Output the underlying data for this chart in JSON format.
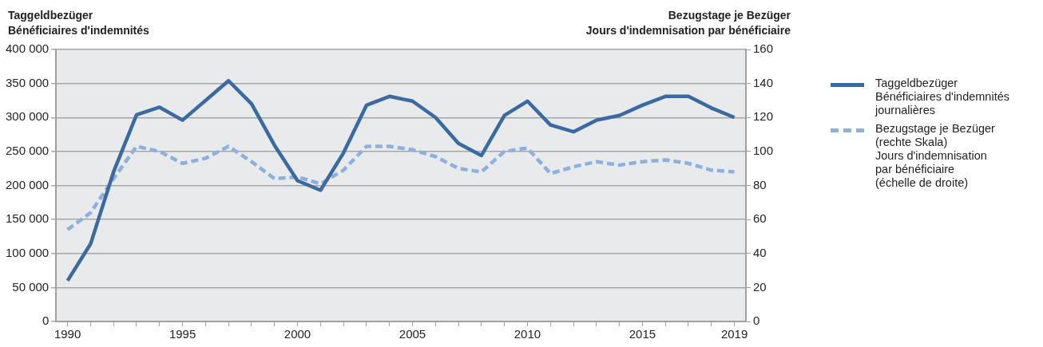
{
  "chart_data": {
    "type": "line",
    "ylabel": "Taggeldbezüger\nBénéficiaires d'indemnités",
    "y2label": "Bezugstage je Bezüger\nJours d'indemnisation par bénéficiaire",
    "x": [
      1990,
      1991,
      1992,
      1993,
      1994,
      1995,
      1996,
      1997,
      1998,
      1999,
      2000,
      2001,
      2002,
      2003,
      2004,
      2005,
      2006,
      2007,
      2008,
      2009,
      2010,
      2011,
      2012,
      2013,
      2014,
      2015,
      2016,
      2017,
      2018,
      2019
    ],
    "series": [
      {
        "name": "Taggeldbezüger\nBénéficiaires d'indemnités\njournalières",
        "color": "#3b6aa3",
        "line_style": "solid",
        "values": [
          60000,
          114000,
          220000,
          304000,
          315000,
          296000,
          325000,
          354000,
          320000,
          259000,
          207000,
          193000,
          248000,
          318000,
          331000,
          324000,
          300000,
          262000,
          244000,
          303000,
          324000,
          289000,
          279000,
          296000,
          303000,
          318000,
          331000,
          331000,
          314000,
          300000
        ]
      },
      {
        "name": "Bezugstage je Bezüger\n(rechte Skala)\nJours d'indemnisation\npar bénéficiaire\n(échelle de droite)",
        "color": "#8eb0de",
        "line_style": "dashed",
        "axis": "y2",
        "values": [
          54,
          64,
          84,
          103,
          100,
          93,
          96,
          103,
          94,
          84,
          85,
          81,
          89,
          103,
          103,
          101,
          97,
          90,
          88,
          100,
          102,
          87,
          91,
          94,
          92,
          94,
          95,
          93,
          89,
          88
        ]
      }
    ],
    "xlim": [
      1989.5,
      2019.5
    ],
    "xticks": [
      1990,
      {
        "value": 1991,
        "label": null
      },
      {
        "value": 1992,
        "label": null
      },
      {
        "value": 1993,
        "label": null
      },
      {
        "value": 1994,
        "label": null
      },
      1995,
      {
        "value": 1996,
        "label": null
      },
      {
        "value": 1997,
        "label": null
      },
      {
        "value": 1998,
        "label": null
      },
      {
        "value": 1999,
        "label": null
      },
      2000,
      {
        "value": 2001,
        "label": null
      },
      {
        "value": 2002,
        "label": null
      },
      {
        "value": 2003,
        "label": null
      },
      {
        "value": 2004,
        "label": null
      },
      2005,
      {
        "value": 2006,
        "label": null
      },
      {
        "value": 2007,
        "label": null
      },
      {
        "value": 2008,
        "label": null
      },
      {
        "value": 2009,
        "label": null
      },
      2010,
      {
        "value": 2011,
        "label": null
      },
      {
        "value": 2012,
        "label": null
      },
      {
        "value": 2013,
        "label": null
      },
      {
        "value": 2014,
        "label": null
      },
      2015,
      {
        "value": 2016,
        "label": null
      },
      {
        "value": 2017,
        "label": null
      },
      {
        "value": 2018,
        "label": null
      },
      2019
    ],
    "ylim": [
      0,
      400000
    ],
    "yticks": [
      0,
      {
        "value": 50000,
        "label": "50 000"
      },
      {
        "value": 100000,
        "label": "100 000"
      },
      {
        "value": 150000,
        "label": "150 000"
      },
      {
        "value": 200000,
        "label": "200 000"
      },
      {
        "value": 250000,
        "label": "250 000"
      },
      {
        "value": 300000,
        "label": "300 000"
      },
      {
        "value": 350000,
        "label": "350 000"
      },
      {
        "value": 400000,
        "label": "400 000"
      }
    ],
    "y2lim": [
      0,
      160
    ],
    "y2ticks": [
      0,
      20,
      40,
      60,
      80,
      100,
      120,
      140,
      160
    ],
    "grid": "y",
    "legend": "right",
    "marker": "none"
  }
}
